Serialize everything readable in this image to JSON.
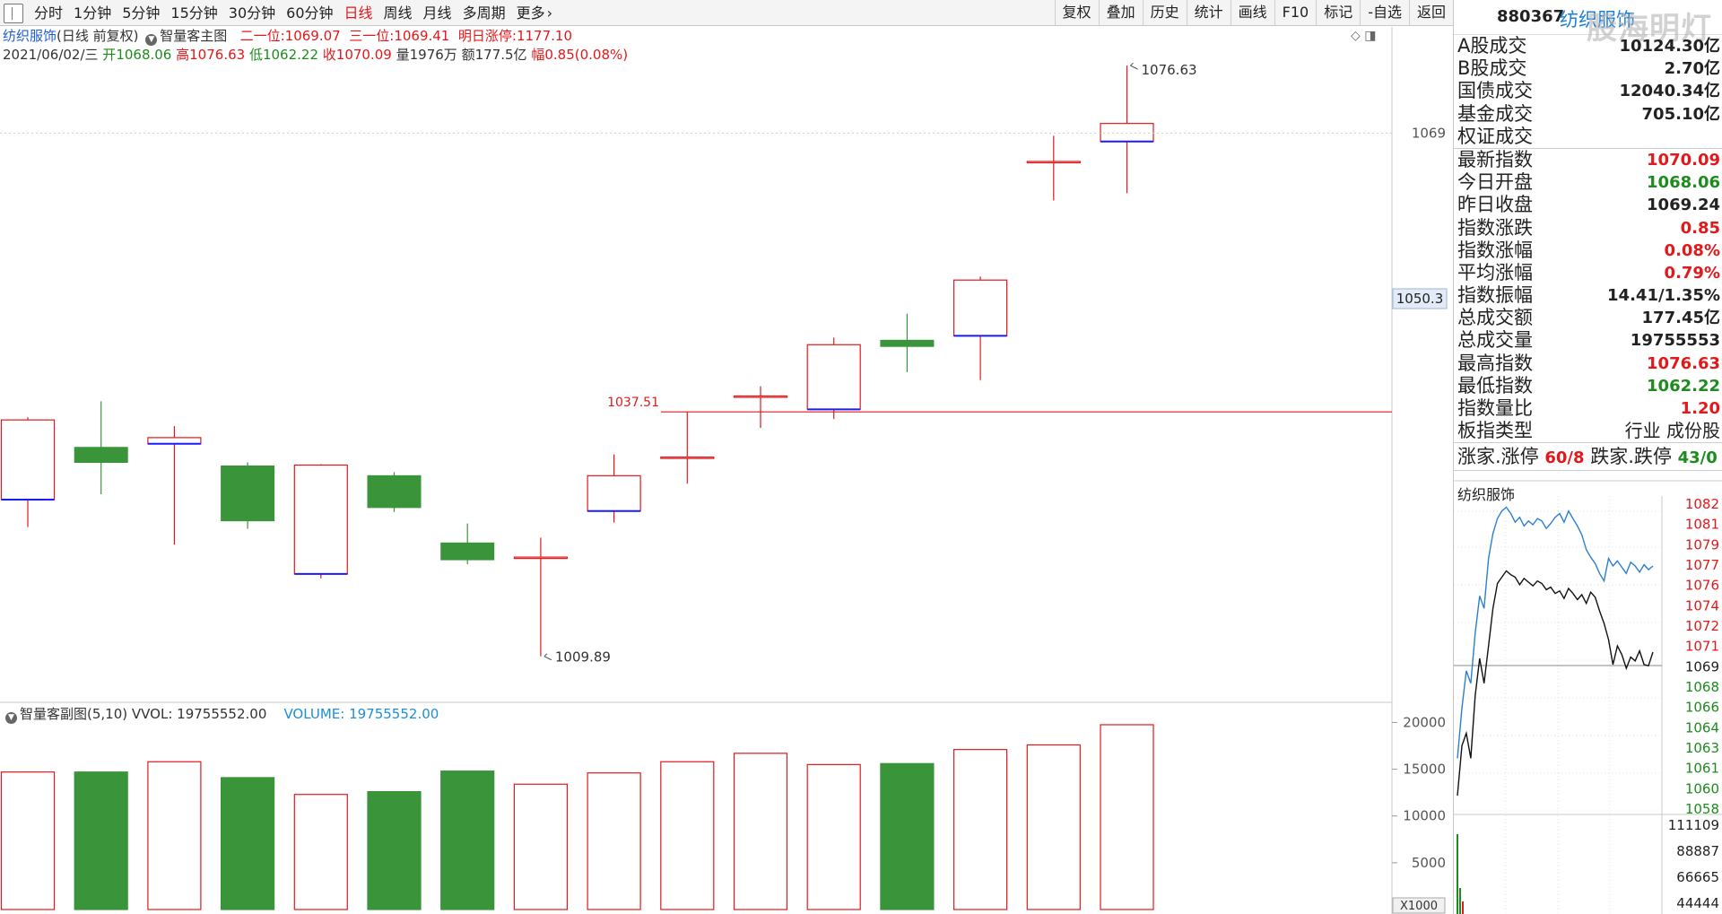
{
  "toolbar": {
    "periods": [
      "分时",
      "1分钟",
      "5分钟",
      "15分钟",
      "30分钟",
      "60分钟",
      "日线",
      "周线",
      "月线",
      "多周期",
      "更多"
    ],
    "active_period": "日线",
    "more_arrow": "›",
    "tools": [
      "复权",
      "叠加",
      "历史",
      "统计",
      "画线",
      "F10",
      "标记",
      "-自选",
      "返回"
    ]
  },
  "header": {
    "stock_name": "纺织服饰",
    "period_note": "(日线 前复权)",
    "main_indicator": "智量客主图",
    "level2_label": "二一位:",
    "level2_value": "1069.07",
    "level3_label": "三一位:",
    "level3_value": "1069.41",
    "limit_label": "明日涨停:",
    "limit_value": "1177.10",
    "date": "2021/06/02/三",
    "open_label": "开",
    "open": "1068.06",
    "high_label": "高",
    "high": "1076.63",
    "low_label": "低",
    "low": "1062.22",
    "close_label": "收",
    "close": "1070.09",
    "vol_label": "量",
    "volume": "1976万",
    "amount_label": "额",
    "amount": "177.5亿",
    "change_label": "幅",
    "change": "0.85(0.08%)",
    "sub_indicator": "智量客副图(5,10)",
    "vvol_label": "VVOL:",
    "vvol_value": "19755552.00",
    "volume_label": "VOLUME:",
    "volume_value": "19755552.00"
  },
  "chart_data": [
    {
      "type": "candlestick",
      "title": "纺织服饰(日线 前复权)",
      "ylim": [
        1005,
        1081
      ],
      "y_ticks": [
        1069
      ],
      "crosshair_price": "1050.3",
      "reference_line": {
        "value": 1037.51,
        "label": "1037.51"
      },
      "annotations": [
        {
          "label": "1076.63",
          "index": 15,
          "value": 1076.63,
          "kind": "high"
        },
        {
          "label": "1009.89",
          "index": 7,
          "value": 1009.89,
          "kind": "low"
        }
      ],
      "candles": [
        {
          "o": 1027.6,
          "h": 1036.9,
          "l": 1024.5,
          "c": 1036.6
        },
        {
          "o": 1033.5,
          "h": 1038.7,
          "l": 1028.2,
          "c": 1031.8
        },
        {
          "o": 1033.9,
          "h": 1035.9,
          "l": 1022.5,
          "c": 1034.6
        },
        {
          "o": 1031.4,
          "h": 1031.8,
          "l": 1024.3,
          "c": 1025.2
        },
        {
          "o": 1019.2,
          "h": 1031.6,
          "l": 1018.7,
          "c": 1031.5
        },
        {
          "o": 1030.3,
          "h": 1030.7,
          "l": 1026.2,
          "c": 1026.7
        },
        {
          "o": 1022.7,
          "h": 1024.9,
          "l": 1020.3,
          "c": 1020.8
        },
        {
          "o": 1021.1,
          "h": 1023.3,
          "l": 1009.9,
          "c": 1021.1
        },
        {
          "o": 1026.3,
          "h": 1032.7,
          "l": 1025.0,
          "c": 1030.3
        },
        {
          "o": 1032.4,
          "h": 1037.5,
          "l": 1029.4,
          "c": 1032.4
        },
        {
          "o": 1039.3,
          "h": 1040.4,
          "l": 1035.7,
          "c": 1039.3
        },
        {
          "o": 1037.8,
          "h": 1045.9,
          "l": 1036.7,
          "c": 1045.1
        },
        {
          "o": 1045.6,
          "h": 1048.6,
          "l": 1042.0,
          "c": 1044.9
        },
        {
          "o": 1046.1,
          "h": 1052.8,
          "l": 1041.1,
          "c": 1052.4
        },
        {
          "o": 1065.8,
          "h": 1068.7,
          "l": 1061.4,
          "c": 1065.8
        },
        {
          "o": 1068.06,
          "h": 1076.63,
          "l": 1062.22,
          "c": 1070.09
        }
      ]
    },
    {
      "type": "bar",
      "title": "智量客副图(5,10)",
      "ylim": [
        0,
        21000
      ],
      "y_ticks": [
        "20000",
        "15000",
        "10000",
        "5000"
      ],
      "unit_label": "X1000",
      "values": [
        14700,
        14700,
        15800,
        14100,
        12300,
        12600,
        14800,
        13400,
        14600,
        15800,
        16700,
        15500,
        15600,
        17100,
        17600,
        19755
      ],
      "colors": [
        "up",
        "down",
        "up",
        "down",
        "up",
        "down",
        "down",
        "up",
        "up",
        "up",
        "up",
        "up",
        "down",
        "up",
        "up",
        "up"
      ]
    },
    {
      "type": "line",
      "title": "纺织服饰",
      "ylim": [
        1057.5,
        1083
      ],
      "left_ticks": [
        "1082",
        "1081",
        "1079",
        "1077",
        "1076",
        "1074",
        "1072",
        "1071",
        "1069",
        "1068",
        "1066",
        "1064",
        "1063",
        "1061",
        "1060",
        "1058"
      ],
      "volume_ticks": [
        "111109",
        "88887",
        "66665",
        "44444"
      ],
      "series": [
        {
          "role": "index",
          "color": "#111111",
          "values": [
            1059,
            1063,
            1064,
            1062,
            1067,
            1070,
            1068,
            1071,
            1074,
            1076,
            1076.5,
            1077,
            1076.7,
            1076.5,
            1075.9,
            1076.4,
            1076.1,
            1075.8,
            1076.2,
            1076.0,
            1075.5,
            1075.7,
            1075.2,
            1075.4,
            1074.8,
            1075.6,
            1075.2,
            1074.7,
            1075.1,
            1074.4,
            1075.3,
            1074.9,
            1073.8,
            1072.8,
            1071.5,
            1069.5,
            1071.0,
            1070.3,
            1069.2,
            1070.1,
            1069.8,
            1070.6,
            1069.5,
            1069.4,
            1070.5
          ]
        },
        {
          "role": "average",
          "color": "#2b7fd0",
          "values": [
            1062,
            1066,
            1069,
            1068,
            1072,
            1075,
            1074,
            1078,
            1080,
            1081.2,
            1081.8,
            1082.1,
            1081.6,
            1080.9,
            1081.3,
            1080.6,
            1081.0,
            1080.7,
            1081.2,
            1081.0,
            1080.4,
            1080.8,
            1081.3,
            1081.6,
            1080.9,
            1081.8,
            1081.2,
            1080.6,
            1079.9,
            1078.7,
            1078.1,
            1077.6,
            1076.8,
            1076.2,
            1078.0,
            1077.4,
            1077.8,
            1077.3,
            1076.8,
            1077.7,
            1077.4,
            1076.9,
            1077.5,
            1077.1,
            1077.4
          ]
        }
      ]
    }
  ],
  "side": {
    "code": "880367",
    "name": "纺织服饰",
    "watermark": "股海明灯",
    "stats": [
      {
        "label": "A股成交",
        "value": "10124.30亿",
        "color": "#222222"
      },
      {
        "label": "B股成交",
        "value": "2.70亿",
        "color": "#222222"
      },
      {
        "label": "国债成交",
        "value": "12040.34亿",
        "color": "#222222"
      },
      {
        "label": "基金成交",
        "value": "705.10亿",
        "color": "#222222"
      },
      {
        "label": "权证成交",
        "value": "",
        "color": "#222222"
      }
    ],
    "stats2": [
      {
        "label": "最新指数",
        "value": "1070.09",
        "color": "#e3181b"
      },
      {
        "label": "今日开盘",
        "value": "1068.06",
        "color": "#1e8b1e"
      },
      {
        "label": "昨日收盘",
        "value": "1069.24",
        "color": "#222222"
      },
      {
        "label": "指数涨跌",
        "value": "0.85",
        "color": "#e3181b"
      },
      {
        "label": "指数涨幅",
        "value": "0.08%",
        "color": "#e3181b"
      },
      {
        "label": "平均涨幅",
        "value": "0.79%",
        "color": "#e3181b"
      },
      {
        "label": "指数振幅",
        "value": "14.41/1.35%",
        "color": "#222222"
      },
      {
        "label": "总成交额",
        "value": "177.45亿",
        "color": "#222222"
      },
      {
        "label": "总成交量",
        "value": "19755553",
        "color": "#222222"
      },
      {
        "label": "最高指数",
        "value": "1076.63",
        "color": "#e3181b"
      },
      {
        "label": "最低指数",
        "value": "1062.22",
        "color": "#1e8b1e"
      },
      {
        "label": "指数量比",
        "value": "1.20",
        "color": "#e3181b"
      },
      {
        "label": "板指类型",
        "value": "行业 成份股",
        "color": "#222222"
      }
    ],
    "up_label": "涨家.涨停",
    "up_value": "60/8",
    "down_label": "跌家.跌停",
    "down_value": "43/0",
    "mini_title": "纺织服饰"
  },
  "colors": {
    "up": "#e3181b",
    "down": "#3a953a",
    "blue_tick": "#1a1aff",
    "grid": "#d0d0d0",
    "avg_line": "#2b7fd0"
  }
}
